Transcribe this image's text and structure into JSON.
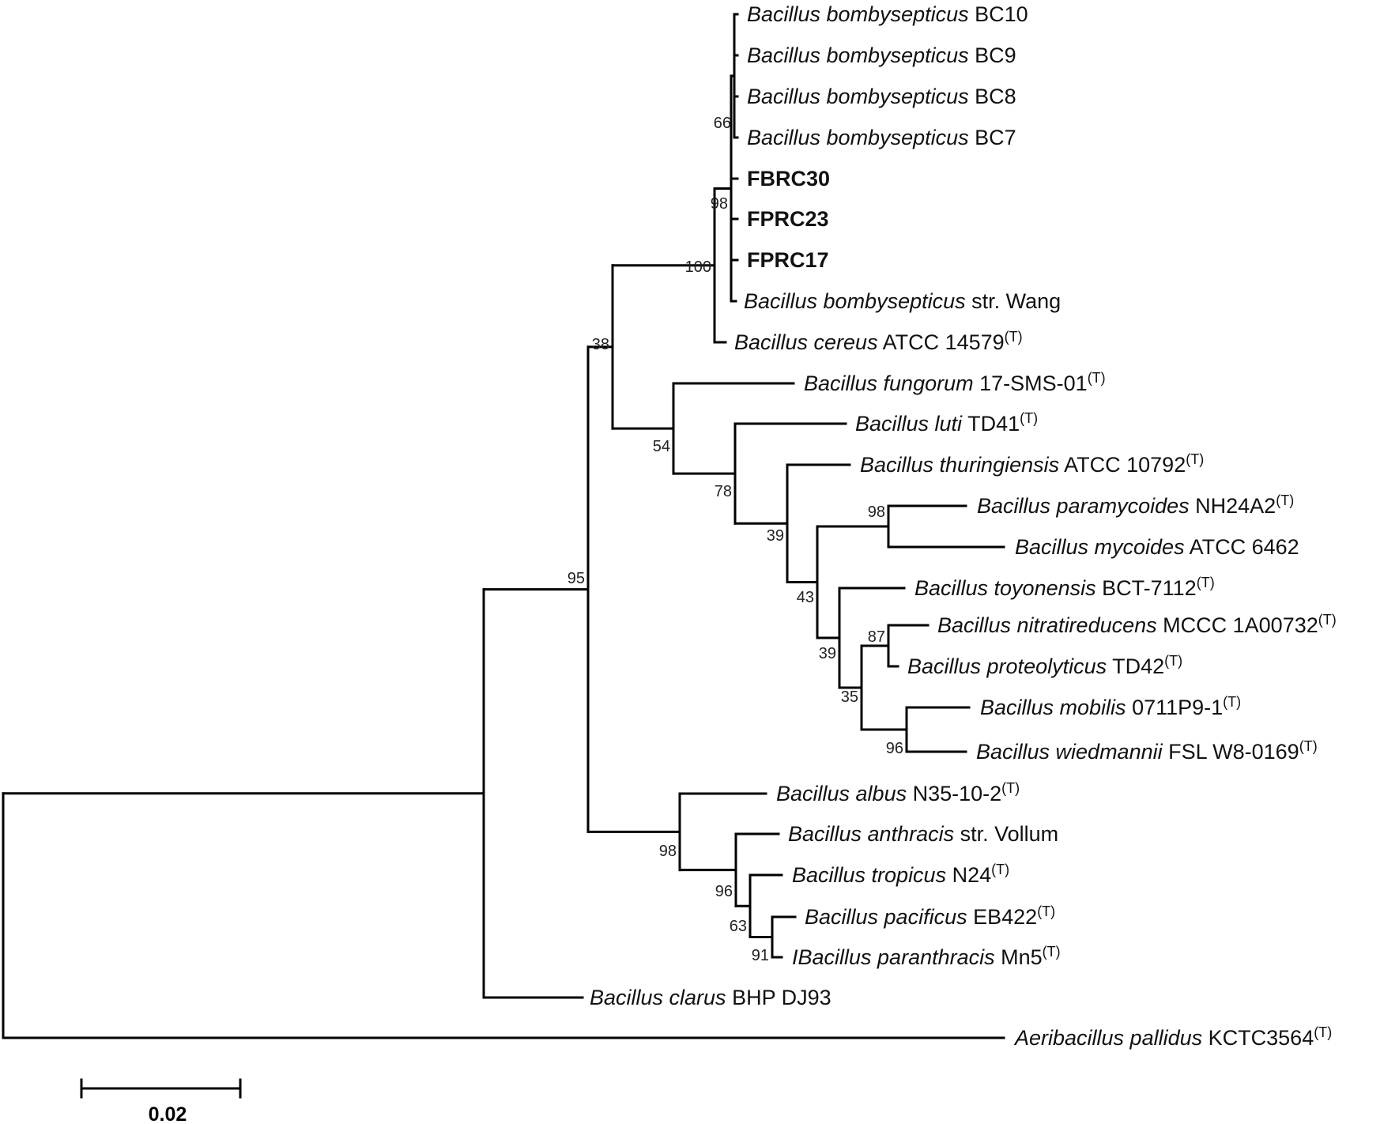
{
  "leaves": [
    {
      "id": "bc10",
      "species": "Bacillus bombysepticus",
      "strain": "BC10",
      "sup": "",
      "bold": false
    },
    {
      "id": "bc9",
      "species": "Bacillus bombysepticus",
      "strain": "BC9",
      "sup": "",
      "bold": false
    },
    {
      "id": "bc8",
      "species": "Bacillus bombysepticus",
      "strain": "BC8",
      "sup": "",
      "bold": false
    },
    {
      "id": "bc7",
      "species": "Bacillus bombysepticus",
      "strain": "BC7",
      "sup": "",
      "bold": false
    },
    {
      "id": "fbrc30",
      "species": "",
      "strain": "FBRC30",
      "sup": "",
      "bold": true
    },
    {
      "id": "fprc23",
      "species": "",
      "strain": "FPRC23",
      "sup": "",
      "bold": true
    },
    {
      "id": "fprc17",
      "species": "",
      "strain": "FPRC17",
      "sup": "",
      "bold": true
    },
    {
      "id": "wang",
      "species": "Bacillus bombysepticus",
      "strain": "str. Wang",
      "sup": "",
      "bold": false
    },
    {
      "id": "cereus",
      "species": "Bacillus cereus",
      "strain": "ATCC 14579",
      "sup": "(T)",
      "bold": false
    },
    {
      "id": "fungorum",
      "species": "Bacillus fungorum",
      "strain": "17-SMS-01",
      "sup": "(T)",
      "bold": false
    },
    {
      "id": "luti",
      "species": "Bacillus luti",
      "strain": "TD41",
      "sup": "(T)",
      "bold": false
    },
    {
      "id": "thuringiensis",
      "species": "Bacillus thuringiensis",
      "strain": "ATCC 10792",
      "sup": "(T)",
      "bold": false
    },
    {
      "id": "paramycoides",
      "species": "Bacillus paramycoides",
      "strain": "NH24A2",
      "sup": "(T)",
      "bold": false
    },
    {
      "id": "mycoides",
      "species": "Bacillus mycoides",
      "strain": "ATCC 6462",
      "sup": "",
      "bold": false
    },
    {
      "id": "toyonensis",
      "species": "Bacillus toyonensis",
      "strain": "BCT-7112",
      "sup": "(T)",
      "bold": false
    },
    {
      "id": "nitratireducens",
      "species": "Bacillus nitratireducens",
      "strain": "MCCC 1A00732",
      "sup": "(T)",
      "bold": false
    },
    {
      "id": "proteolyticus",
      "species": "Bacillus proteolyticus",
      "strain": "TD42",
      "sup": "(T)",
      "bold": false
    },
    {
      "id": "mobilis",
      "species": "Bacillus mobilis",
      "strain": "0711P9-1",
      "sup": "(T)",
      "bold": false
    },
    {
      "id": "wiedmannii",
      "species": "Bacillus wiedmannii",
      "strain": "FSL W8-0169",
      "sup": "(T)",
      "bold": false
    },
    {
      "id": "albus",
      "species": "Bacillus albus",
      "strain": "N35-10-2",
      "sup": "(T)",
      "bold": false
    },
    {
      "id": "anthracis",
      "species": "Bacillus anthracis",
      "strain": "str. Vollum",
      "sup": "",
      "bold": false
    },
    {
      "id": "tropicus",
      "species": "Bacillus tropicus",
      "strain": "N24",
      "sup": "(T)",
      "bold": false
    },
    {
      "id": "pacificus",
      "species": "Bacillus pacificus",
      "strain": "EB422",
      "sup": "(T)",
      "bold": false
    },
    {
      "id": "paranthracis",
      "species": "IBacillus paranthracis",
      "strain": "Mn5",
      "sup": "(T)",
      "bold": false
    },
    {
      "id": "clarus",
      "species": "Bacillus clarus",
      "strain": "BHP DJ93",
      "sup": "",
      "bold": false
    },
    {
      "id": "pallidus",
      "species": "Aeribacillus pallidus",
      "strain": "KCTC3564",
      "sup": "(T)",
      "bold": false
    }
  ],
  "bootstrap": [
    {
      "id": "n66",
      "value": "66"
    },
    {
      "id": "n98a",
      "value": "98"
    },
    {
      "id": "n100",
      "value": "100"
    },
    {
      "id": "n38",
      "value": "38"
    },
    {
      "id": "n54",
      "value": "54"
    },
    {
      "id": "n78",
      "value": "78"
    },
    {
      "id": "n39a",
      "value": "39"
    },
    {
      "id": "n98b",
      "value": "98"
    },
    {
      "id": "n43",
      "value": "43"
    },
    {
      "id": "n39b",
      "value": "39"
    },
    {
      "id": "n87",
      "value": "87"
    },
    {
      "id": "n35",
      "value": "35"
    },
    {
      "id": "n96a",
      "value": "96"
    },
    {
      "id": "n95",
      "value": "95"
    },
    {
      "id": "n98c",
      "value": "98"
    },
    {
      "id": "n96b",
      "value": "96"
    },
    {
      "id": "n63",
      "value": "63"
    },
    {
      "id": "n91",
      "value": "91"
    }
  ],
  "scale_bar": {
    "label": "0.02",
    "value": 0.02
  }
}
